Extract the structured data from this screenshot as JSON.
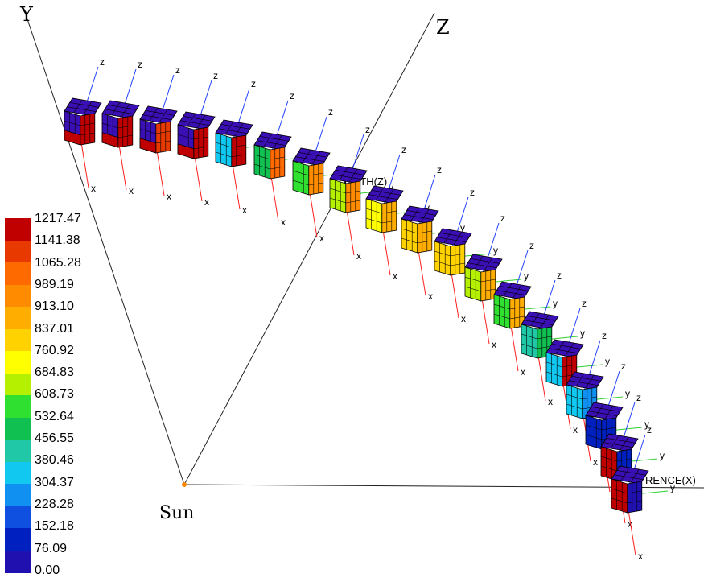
{
  "axes": {
    "y_label": "Y",
    "z_label": "Z",
    "origin_label": "Sun",
    "north_label": "ORTH(Z)",
    "reference_label": "RENCE(X)"
  },
  "frame_axis_labels": {
    "x": "x",
    "y": "y",
    "z": "z"
  },
  "colorbar": {
    "labels": [
      "1217.47",
      "1141.38",
      "1065.28",
      "989.19",
      "913.10",
      "837.01",
      "760.92",
      "684.83",
      "608.73",
      "532.64",
      "456.55",
      "380.46",
      "304.37",
      "228.28",
      "152.18",
      "76.09",
      "0.00"
    ],
    "colors": [
      "#c00000",
      "#e83a00",
      "#ff6a00",
      "#ff8c00",
      "#ffae00",
      "#ffd200",
      "#ffff00",
      "#b4f000",
      "#30e030",
      "#10c050",
      "#20c8a8",
      "#10c8f0",
      "#1090f0",
      "#1050e0",
      "#0020c0",
      "#2010b0"
    ]
  },
  "frames_count": 18,
  "colors": {
    "cube_top": "#3a0fb4",
    "edge": "#000000",
    "x_axis": "#ff2020",
    "y_axis": "#30d030",
    "z_axis": "#2040ff",
    "sun": "#ff8800"
  }
}
